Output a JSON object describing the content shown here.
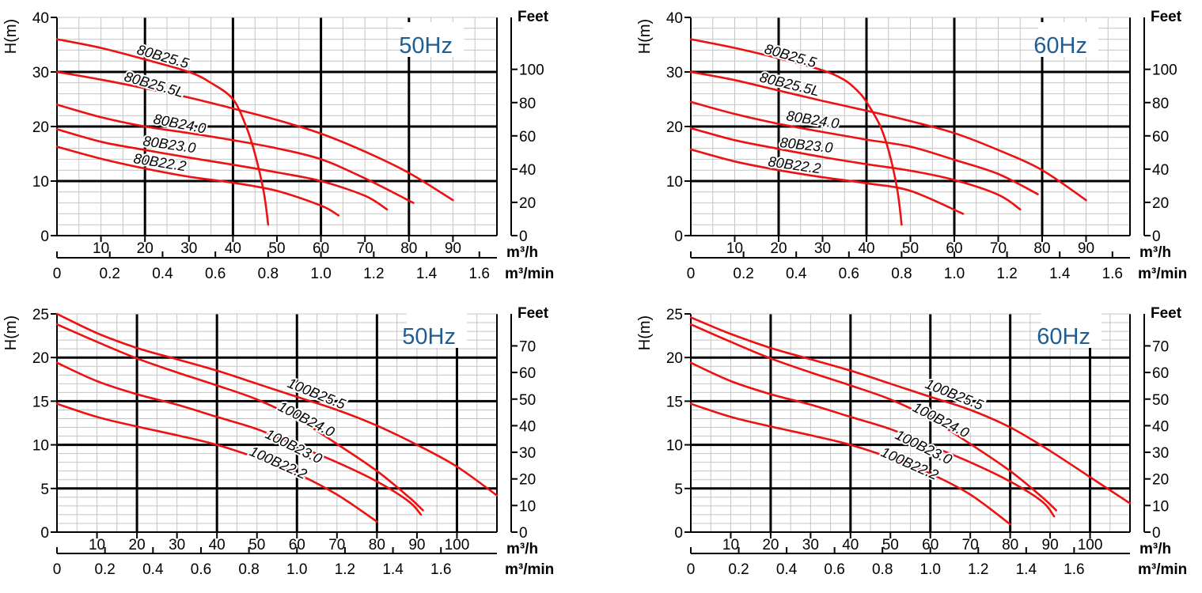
{
  "colors": {
    "curve": "#ee1111",
    "grid_minor": "#c4c4c4",
    "grid_major": "#000000",
    "hz_label": "#1f5d95"
  },
  "chart_data": [
    {
      "type": "line",
      "frequency_label": "50Hz",
      "ylabel": "H(m)",
      "y2label": "Feet",
      "xlabel": "m³/h",
      "x2label": "m³/min",
      "xlim": [
        0,
        100
      ],
      "ylim": [
        0,
        40
      ],
      "x_ticks": [
        10,
        20,
        30,
        40,
        50,
        60,
        70,
        80,
        90
      ],
      "x_tick_labels": [
        "10",
        "20",
        "30",
        "40",
        "50",
        "60",
        "70",
        "80",
        "90"
      ],
      "y_ticks": [
        0,
        10,
        20,
        30,
        40
      ],
      "y_tick_labels": [
        "0",
        "10",
        "20",
        "30",
        "40"
      ],
      "y2_ticks": [
        0,
        20,
        40,
        60,
        80,
        100
      ],
      "y2_tick_labels": [
        "0",
        "20",
        "40",
        "60",
        "80",
        "100"
      ],
      "x2_ticks": [
        0,
        0.2,
        0.4,
        0.6,
        0.8,
        1.0,
        1.2,
        1.4,
        1.6
      ],
      "x2_tick_labels": [
        "0",
        "0.2",
        "0.4",
        "0.6",
        "0.8",
        "1.0",
        "1.2",
        "1.4",
        "1.6"
      ],
      "grid": true,
      "series": [
        {
          "name": "80B25.5",
          "x": [
            0,
            10,
            20,
            30,
            35,
            40,
            43,
            45,
            47,
            48
          ],
          "y": [
            36,
            34.4,
            32.3,
            30,
            28,
            25,
            20,
            15,
            8,
            2
          ]
        },
        {
          "name": "80B25.5L",
          "x": [
            0,
            10,
            20,
            30,
            40,
            50,
            60,
            70,
            80,
            90
          ],
          "y": [
            30,
            28.6,
            27,
            25.3,
            23.3,
            21.2,
            18.7,
            15.4,
            11.5,
            6.5
          ]
        },
        {
          "name": "80B24.0",
          "x": [
            0,
            10,
            20,
            30,
            40,
            50,
            60,
            70,
            81
          ],
          "y": [
            24,
            21.7,
            20,
            18.8,
            17.5,
            16,
            14,
            10.5,
            6
          ]
        },
        {
          "name": "80B23.0",
          "x": [
            0,
            10,
            20,
            30,
            40,
            50,
            60,
            70,
            75
          ],
          "y": [
            19.5,
            17.2,
            15.7,
            14.3,
            13,
            11.6,
            10,
            7.3,
            4.8
          ]
        },
        {
          "name": "80B22.2",
          "x": [
            0,
            10,
            20,
            30,
            40,
            50,
            60,
            64
          ],
          "y": [
            16.3,
            14.1,
            12.3,
            10.8,
            9.7,
            8.2,
            5.5,
            3.7
          ]
        }
      ]
    },
    {
      "type": "line",
      "frequency_label": "60Hz",
      "ylabel": "H(m)",
      "y2label": "Feet",
      "xlabel": "m³/h",
      "x2label": "m³/min",
      "xlim": [
        0,
        100
      ],
      "ylim": [
        0,
        40
      ],
      "x_ticks": [
        10,
        20,
        30,
        40,
        50,
        60,
        70,
        80,
        90
      ],
      "x_tick_labels": [
        "10",
        "20",
        "30",
        "40",
        "50",
        "60",
        "70",
        "80",
        "90"
      ],
      "y_ticks": [
        0,
        10,
        20,
        30,
        40
      ],
      "y_tick_labels": [
        "0",
        "10",
        "20",
        "30",
        "40"
      ],
      "y2_ticks": [
        0,
        20,
        40,
        60,
        80,
        100
      ],
      "y2_tick_labels": [
        "0",
        "20",
        "40",
        "60",
        "80",
        "100"
      ],
      "x2_ticks": [
        0,
        0.2,
        0.4,
        0.6,
        0.8,
        1.0,
        1.2,
        1.4,
        1.6
      ],
      "x2_tick_labels": [
        "0",
        "0.2",
        "0.4",
        "0.6",
        "0.8",
        "1.0",
        "1.2",
        "1.4",
        "1.6"
      ],
      "grid": true,
      "series": [
        {
          "name": "80B25.5",
          "x": [
            0,
            10,
            20,
            30,
            35,
            38,
            40,
            43,
            45,
            47,
            48
          ],
          "y": [
            36,
            34.4,
            32.5,
            30.3,
            28.5,
            26.5,
            24.5,
            20.3,
            15.7,
            8.5,
            2
          ]
        },
        {
          "name": "80B25.5L",
          "x": [
            0,
            10,
            20,
            30,
            40,
            50,
            60,
            70,
            80,
            90
          ],
          "y": [
            30,
            28.5,
            26.6,
            24.7,
            22.9,
            21,
            18.8,
            15.7,
            12,
            6.5
          ]
        },
        {
          "name": "80B24.0",
          "x": [
            0,
            10,
            20,
            30,
            40,
            50,
            60,
            70,
            79
          ],
          "y": [
            24.5,
            22.3,
            20.5,
            19,
            17.6,
            16.3,
            13.9,
            11.3,
            7.6
          ]
        },
        {
          "name": "80B23.0",
          "x": [
            0,
            10,
            20,
            30,
            40,
            50,
            60,
            70,
            75
          ],
          "y": [
            19.7,
            17.5,
            15.9,
            14.4,
            13.1,
            11.9,
            10.2,
            7.5,
            4.8
          ]
        },
        {
          "name": "80B22.2",
          "x": [
            0,
            10,
            20,
            30,
            40,
            50,
            62
          ],
          "y": [
            15.8,
            13.6,
            12,
            10.7,
            9.6,
            8.2,
            4
          ]
        }
      ]
    },
    {
      "type": "line",
      "frequency_label": "50Hz",
      "ylabel": "H(m)",
      "y2label": "Feet",
      "xlabel": "m³/h",
      "x2label": "m³/min",
      "xlim": [
        0,
        110
      ],
      "ylim": [
        0,
        25
      ],
      "x_ticks": [
        10,
        20,
        30,
        40,
        50,
        60,
        70,
        80,
        90,
        100
      ],
      "x_tick_labels": [
        "10",
        "20",
        "30",
        "40",
        "50",
        "60",
        "70",
        "80",
        "90",
        "100"
      ],
      "y_ticks": [
        0,
        5,
        10,
        15,
        20,
        25
      ],
      "y_tick_labels": [
        "0",
        "5",
        "10",
        "15",
        "20",
        "25"
      ],
      "y2_ticks": [
        0,
        10,
        20,
        30,
        40,
        50,
        60,
        70
      ],
      "y2_tick_labels": [
        "0",
        "10",
        "20",
        "30",
        "40",
        "50",
        "60",
        "70"
      ],
      "x2_ticks": [
        0,
        0.2,
        0.4,
        0.6,
        0.8,
        1.0,
        1.2,
        1.4,
        1.6
      ],
      "x2_tick_labels": [
        "0",
        "0.2",
        "0.4",
        "0.6",
        "0.8",
        "1.0",
        "1.2",
        "1.4",
        "1.6"
      ],
      "grid": true,
      "series": [
        {
          "name": "100B25.5",
          "x": [
            0,
            10,
            20,
            30,
            40,
            50,
            60,
            70,
            80,
            90,
            100,
            110
          ],
          "y": [
            25,
            22.8,
            21.1,
            19.8,
            18.5,
            17,
            15.5,
            14,
            12.2,
            10,
            7.5,
            4.2
          ]
        },
        {
          "name": "100B24.0",
          "x": [
            0,
            10,
            20,
            30,
            40,
            50,
            60,
            70,
            80,
            88,
            91.5
          ],
          "y": [
            23.8,
            21.8,
            19.9,
            18.3,
            16.8,
            15.2,
            13,
            10.1,
            7,
            4,
            2.5
          ]
        },
        {
          "name": "100B23.0",
          "x": [
            0,
            10,
            20,
            30,
            40,
            50,
            60,
            70,
            80,
            88,
            91
          ],
          "y": [
            19.4,
            17.3,
            15.8,
            14.6,
            13.2,
            11.8,
            9.9,
            8,
            5.8,
            3.5,
            2
          ]
        },
        {
          "name": "100B22.2",
          "x": [
            0,
            10,
            20,
            30,
            40,
            50,
            60,
            70,
            80
          ],
          "y": [
            14.7,
            13.2,
            12.1,
            11.1,
            10,
            8.5,
            6.7,
            4.3,
            1.2
          ]
        }
      ]
    },
    {
      "type": "line",
      "frequency_label": "60Hz",
      "ylabel": "H(m)",
      "y2label": "Feet",
      "xlabel": "m³/h",
      "x2label": "m³/min",
      "xlim": [
        0,
        110
      ],
      "ylim": [
        0,
        25
      ],
      "x_ticks": [
        10,
        20,
        30,
        40,
        50,
        60,
        70,
        80,
        90,
        100
      ],
      "x_tick_labels": [
        "10",
        "20",
        "30",
        "40",
        "50",
        "60",
        "70",
        "80",
        "90",
        "100"
      ],
      "y_ticks": [
        0,
        5,
        10,
        15,
        20,
        25
      ],
      "y_tick_labels": [
        "0",
        "5",
        "10",
        "15",
        "20",
        "25"
      ],
      "y2_ticks": [
        0,
        10,
        20,
        30,
        40,
        50,
        60,
        70
      ],
      "y2_tick_labels": [
        "0",
        "10",
        "20",
        "30",
        "40",
        "50",
        "60",
        "70"
      ],
      "x2_ticks": [
        0,
        0.2,
        0.4,
        0.6,
        0.8,
        1.0,
        1.2,
        1.4,
        1.6
      ],
      "x2_tick_labels": [
        "0",
        "0.2",
        "0.4",
        "0.6",
        "0.8",
        "1.0",
        "1.2",
        "1.4",
        "1.6"
      ],
      "grid": true,
      "series": [
        {
          "name": "100B25.5",
          "x": [
            0,
            10,
            20,
            30,
            40,
            50,
            60,
            70,
            80,
            90,
            100,
            110
          ],
          "y": [
            24.6,
            22.7,
            21.1,
            19.8,
            18.5,
            17,
            15.5,
            14,
            12,
            9.3,
            6.3,
            3.3
          ]
        },
        {
          "name": "100B24.0",
          "x": [
            0,
            10,
            20,
            30,
            40,
            50,
            60,
            70,
            80,
            88,
            91.5
          ],
          "y": [
            23.8,
            21.8,
            19.9,
            18.3,
            16.8,
            15.2,
            13,
            10.1,
            7,
            4,
            2.5
          ]
        },
        {
          "name": "100B23.0",
          "x": [
            0,
            10,
            20,
            30,
            40,
            50,
            60,
            70,
            80,
            88,
            91
          ],
          "y": [
            19.4,
            17.3,
            15.8,
            14.6,
            13.2,
            11.8,
            9.9,
            8,
            5.8,
            3.5,
            1.8
          ]
        },
        {
          "name": "100B22.2",
          "x": [
            0,
            10,
            20,
            30,
            40,
            50,
            60,
            70,
            80
          ],
          "y": [
            14.7,
            13.2,
            12.1,
            11.1,
            10,
            8.5,
            6.7,
            4.3,
            0.9
          ]
        }
      ]
    }
  ]
}
